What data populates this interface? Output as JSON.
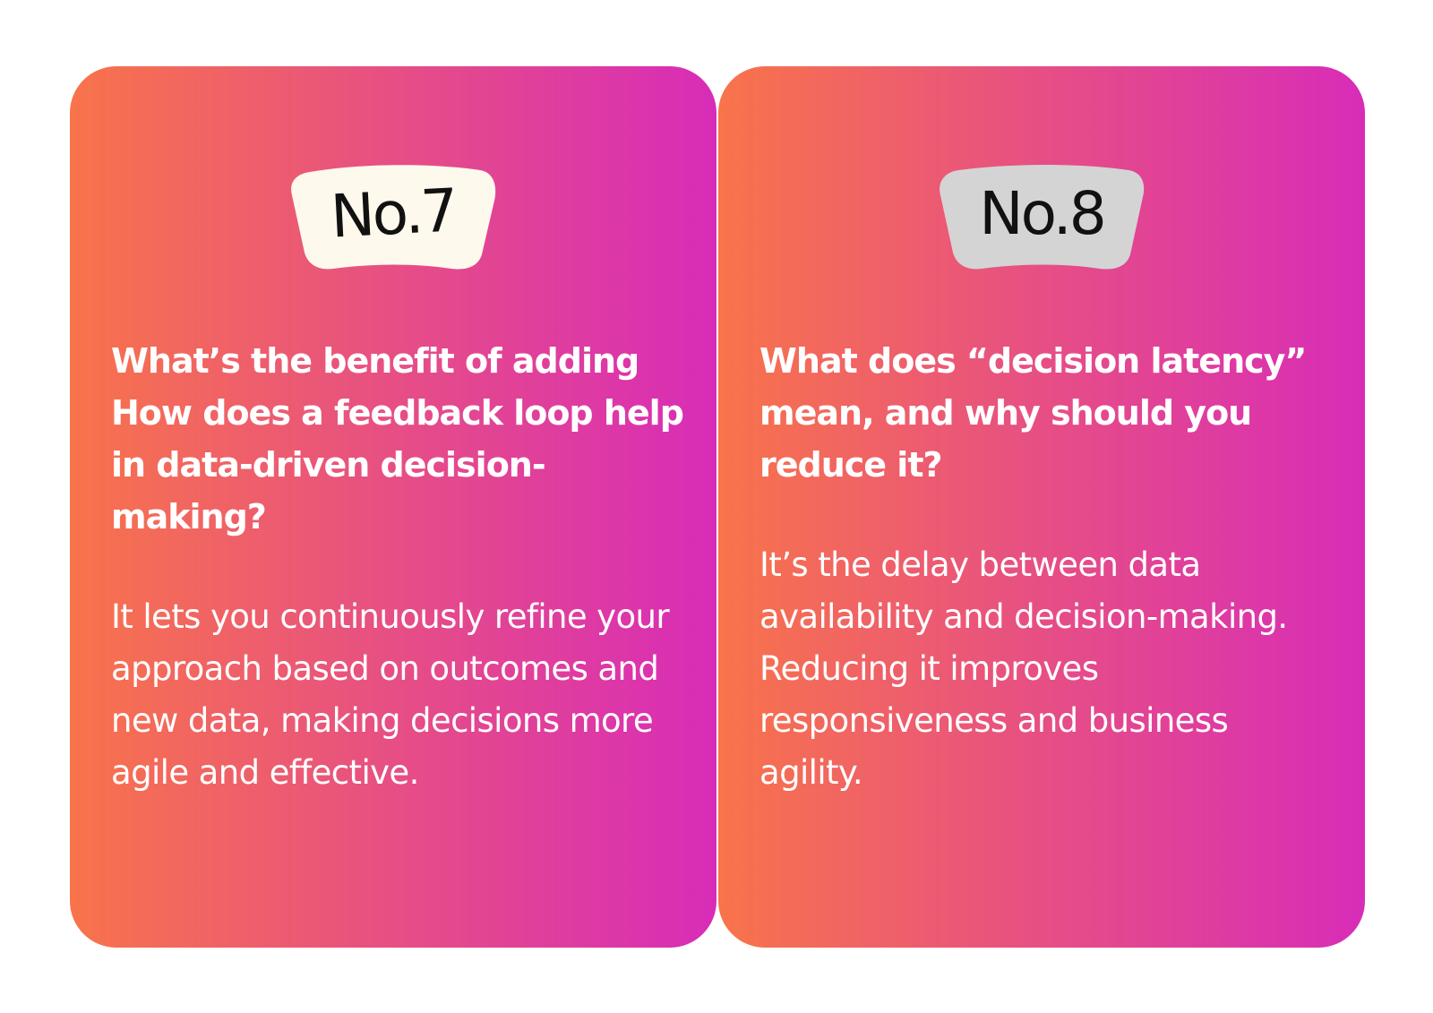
{
  "cards": [
    {
      "number": "No.7",
      "badge_color": "#fdf9ec",
      "question": "What’s the benefit of adding How does a feedback loop help in data-driven decision-making?",
      "answer": "It lets you continuously refine your approach based on outcomes and new data, making decisions more agile and effective."
    },
    {
      "number": "No.8",
      "badge_color": "#d4d4d4",
      "question": "What does “decision latency” mean, and why should you reduce it?",
      "answer": "It’s the delay between data availability and decision-making. Reducing it improves responsiveness and business agility."
    }
  ],
  "gradient": {
    "start": "#f8744a",
    "mid": "#e8527f",
    "end": "#d82cb8"
  }
}
